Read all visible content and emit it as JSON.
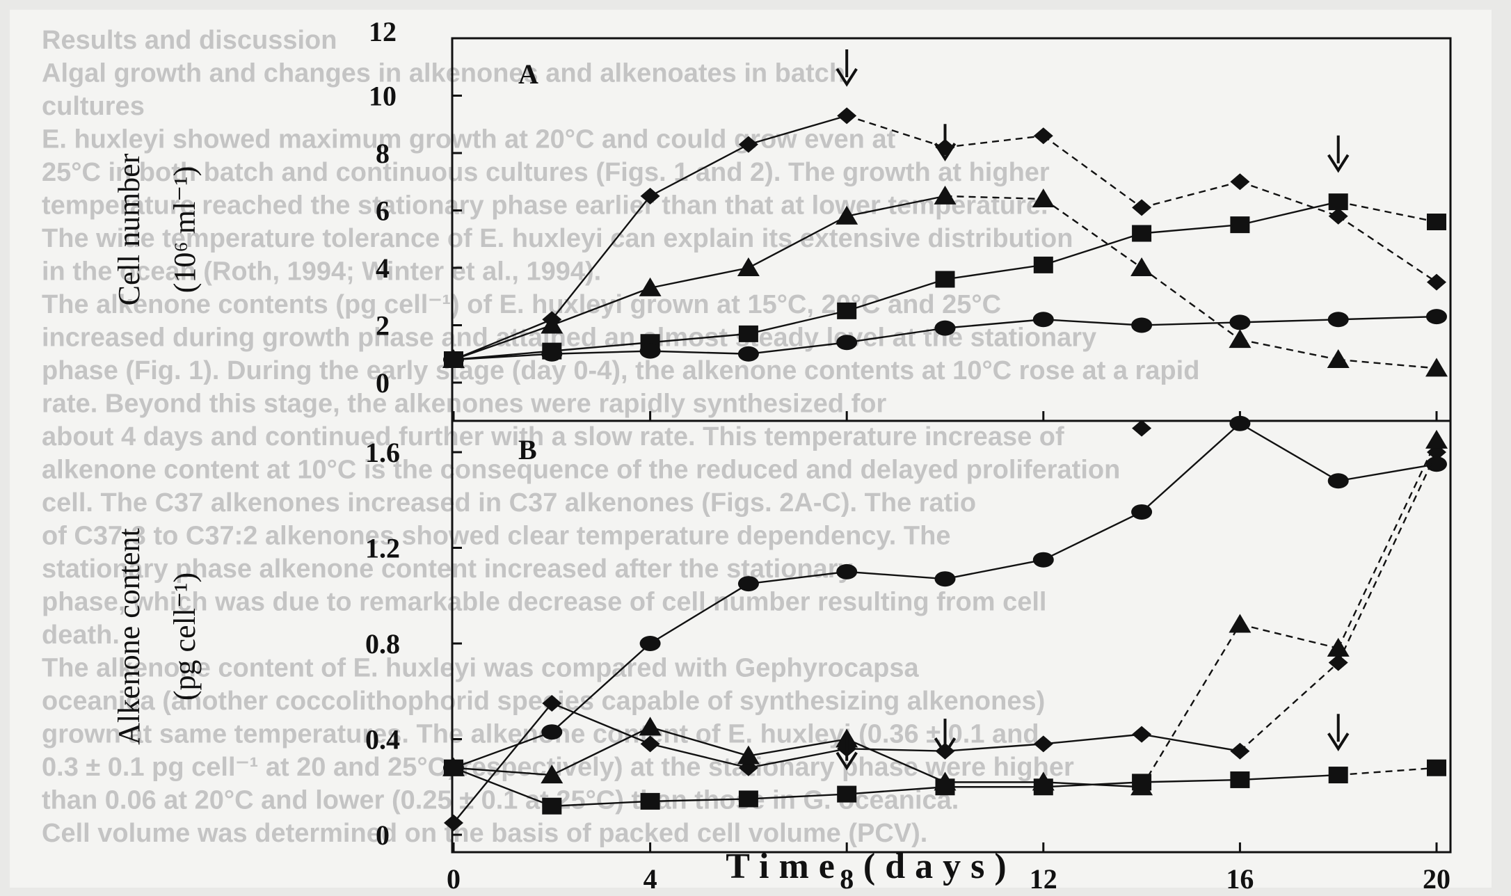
{
  "figure": {
    "xlabel": "Time (days)",
    "colors": {
      "ink": "#111111",
      "paper": "#f4f4f2",
      "frame": "#e9e9e7",
      "bleed": "#c4c4c4"
    }
  },
  "background_text": [
    "Results and discussion",
    "Algal growth and changes in alkenones and alkenoates in batch",
    "cultures",
    "E. huxleyi showed maximum growth at 20°C and could grow even at",
    "25°C in both batch and continuous cultures (Figs. 1 and 2). The growth at higher",
    "temperature reached the stationary phase earlier than that at lower temperature.",
    "The wide temperature tolerance of E. huxleyi can explain its extensive distribution",
    "in the ocean (Roth, 1994; Winter et al., 1994).",
    "The alkenone contents (pg cell⁻¹) of E. huxleyi grown at 15°C, 20°C and 25°C",
    "increased during growth phase and attained an almost steady level at the stationary",
    "phase (Fig. 1). During the early stage (day 0-4), the alkenone contents at 10°C rose at a rapid",
    "rate. Beyond this stage, the alkenones were rapidly synthesized for",
    "about 4 days and continued further with a slow rate. This temperature increase of",
    "alkenone content at 10°C is the consequence of the reduced and delayed proliferation",
    "cell. The C37 alkenones increased in C37 alkenones (Figs. 2A-C). The ratio",
    "of C37:3 to C37:2 alkenones showed clear temperature dependency. The",
    "stationary phase alkenone content increased after the stationary",
    "phase, which was due to remarkable decrease of cell number resulting from cell",
    "death.",
    "The alkenone content of E. huxleyi was compared with Gephyrocapsa",
    "oceanica (another coccolithophorid species capable of synthesizing alkenones)",
    "grown at same temperatures. The alkenone content of E. huxleyi (0.36 ± 0.1 and",
    "0.3 ± 0.1 pg cell⁻¹ at 20 and 25°C, respectively) at the stationary phase were higher",
    "than 0.06 at 20°C and lower (0.25 ± 0.1 at 25°C) than those in G. oceanica.",
    "Cell volume was determined on the basis of packed cell volume (PCV)."
  ],
  "chart_data": [
    {
      "panel_label": "A",
      "type": "line",
      "xlabel": "Time (days)",
      "ylabel": [
        "Cell number",
        "(10⁶ ml⁻¹)"
      ],
      "xlim": [
        0,
        20
      ],
      "ylim": [
        0,
        12
      ],
      "x_ticks": [
        0,
        4,
        8,
        12,
        16,
        20
      ],
      "y_ticks": [
        0,
        2,
        4,
        6,
        8,
        10,
        12
      ],
      "series": [
        {
          "marker": "diamond",
          "points": [
            [
              0,
              0.8
            ],
            [
              2,
              2.2
            ],
            [
              4,
              6.5
            ],
            [
              6,
              8.3
            ],
            [
              8,
              9.3
            ],
            [
              10,
              8.2
            ],
            [
              12,
              8.6
            ],
            [
              14,
              6.1
            ],
            [
              16,
              7.0
            ],
            [
              18,
              5.8
            ],
            [
              20,
              3.5
            ]
          ],
          "dash_from": 8
        },
        {
          "marker": "triangle",
          "points": [
            [
              0,
              0.8
            ],
            [
              2,
              2.0
            ],
            [
              4,
              3.3
            ],
            [
              6,
              4.0
            ],
            [
              8,
              5.8
            ],
            [
              10,
              6.5
            ],
            [
              12,
              6.4
            ],
            [
              14,
              4.0
            ],
            [
              16,
              1.5
            ],
            [
              18,
              0.8
            ],
            [
              20,
              0.5
            ]
          ],
          "dash_from": 10
        },
        {
          "marker": "square",
          "points": [
            [
              0,
              0.8
            ],
            [
              2,
              1.1
            ],
            [
              4,
              1.4
            ],
            [
              6,
              1.7
            ],
            [
              8,
              2.5
            ],
            [
              10,
              3.6
            ],
            [
              12,
              4.1
            ],
            [
              14,
              5.2
            ],
            [
              16,
              5.5
            ],
            [
              18,
              6.3
            ],
            [
              20,
              5.6
            ]
          ],
          "dash_from": 18
        },
        {
          "marker": "circle",
          "points": [
            [
              0,
              0.8
            ],
            [
              2,
              1.0
            ],
            [
              4,
              1.1
            ],
            [
              6,
              1.0
            ],
            [
              8,
              1.4
            ],
            [
              10,
              1.9
            ],
            [
              12,
              2.2
            ],
            [
              14,
              2.0
            ],
            [
              16,
              2.1
            ],
            [
              18,
              2.2
            ],
            [
              20,
              2.3
            ]
          ]
        }
      ],
      "arrows": [
        {
          "x": 8,
          "y": 10.4
        },
        {
          "x": 10,
          "y": 7.8
        },
        {
          "x": 18,
          "y": 7.4
        }
      ]
    },
    {
      "panel_label": "B",
      "type": "line",
      "xlabel": "Time (days)",
      "ylabel": [
        "Alkenone content",
        "(pg cell⁻¹)"
      ],
      "xlim": [
        0,
        20
      ],
      "ylim": [
        0,
        1.6
      ],
      "x_ticks": [
        0,
        4,
        8,
        12,
        16,
        20
      ],
      "y_ticks": [
        0,
        0.4,
        0.8,
        1.2,
        1.6
      ],
      "series": [
        {
          "marker": "circle",
          "points": [
            [
              0,
              0.28
            ],
            [
              2,
              0.43
            ],
            [
              4,
              0.8
            ],
            [
              6,
              1.05
            ],
            [
              8,
              1.1
            ],
            [
              10,
              1.07
            ],
            [
              12,
              1.15
            ],
            [
              14,
              1.35
            ],
            [
              16,
              1.72
            ],
            [
              18,
              1.48
            ],
            [
              20,
              1.55
            ]
          ]
        },
        {
          "marker": "diamond",
          "points": [
            [
              0,
              0.05
            ],
            [
              2,
              0.55
            ],
            [
              4,
              0.38
            ],
            [
              6,
              0.28
            ],
            [
              8,
              0.36
            ],
            [
              10,
              0.35
            ],
            [
              12,
              0.38
            ],
            [
              14,
              0.42
            ],
            [
              16,
              0.35
            ],
            [
              18,
              0.72
            ],
            [
              20,
              1.6
            ]
          ],
          "outlier": [
            14,
            1.7
          ],
          "dash_from": 16
        },
        {
          "marker": "triangle",
          "points": [
            [
              0,
              0.28
            ],
            [
              2,
              0.25
            ],
            [
              4,
              0.45
            ],
            [
              6,
              0.33
            ],
            [
              8,
              0.4
            ],
            [
              10,
              0.22
            ],
            [
              12,
              0.22
            ],
            [
              14,
              0.2
            ],
            [
              16,
              0.88
            ],
            [
              18,
              0.78
            ],
            [
              20,
              1.65
            ]
          ],
          "dash_from": 14
        },
        {
          "marker": "square",
          "points": [
            [
              0,
              0.28
            ],
            [
              2,
              0.12
            ],
            [
              4,
              0.14
            ],
            [
              6,
              0.15
            ],
            [
              8,
              0.17
            ],
            [
              10,
              0.2
            ],
            [
              12,
              0.2
            ],
            [
              14,
              0.22
            ],
            [
              16,
              0.23
            ],
            [
              18,
              0.25
            ],
            [
              20,
              0.28
            ]
          ],
          "dash_from": 18
        }
      ],
      "arrows": [
        {
          "x": 8,
          "y": 0.28
        },
        {
          "x": 10,
          "y": 0.34
        },
        {
          "x": 18,
          "y": 0.36
        }
      ]
    }
  ]
}
